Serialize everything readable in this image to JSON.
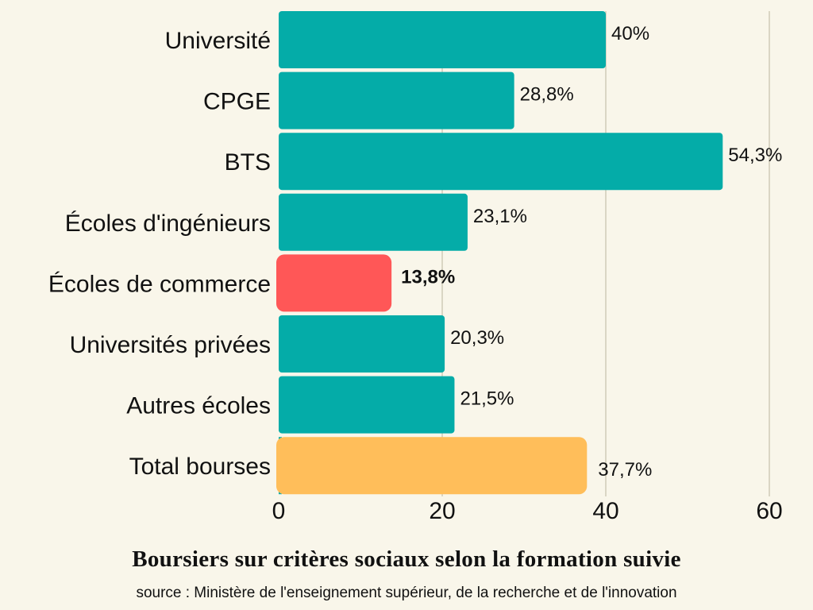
{
  "chart_data": {
    "type": "bar",
    "orientation": "horizontal",
    "title": "Boursiers sur critères sociaux selon la formation suivie",
    "subtitle": "source  : Ministère de l'enseignement supérieur, de la recherche et de l'innovation",
    "categories": [
      "Université",
      "CPGE",
      "BTS",
      "Écoles d'ingénieurs",
      "Écoles de commerce",
      "Universités privées",
      "Autres écoles",
      "Total bourses"
    ],
    "values": [
      40,
      28.8,
      54.3,
      23.1,
      13.8,
      20.3,
      21.5,
      37.7
    ],
    "value_labels": [
      "40%",
      "28,8%",
      "54,3%",
      "23,1%",
      "13,8%",
      "20,3%",
      "21,5%",
      "37,7%"
    ],
    "xlim": [
      0,
      60
    ],
    "x_ticks": [
      0,
      20,
      40,
      60
    ],
    "x_tick_labels": [
      "0",
      "20",
      "40",
      "60"
    ],
    "grid": true,
    "colors": {
      "default": "#04aca8",
      "highlight": "#ff5757",
      "total": "#ffbe5a",
      "highlight_label": "#ff5757",
      "background": "#f9f6ea"
    },
    "highlight_index": 4,
    "total_index": 7
  }
}
